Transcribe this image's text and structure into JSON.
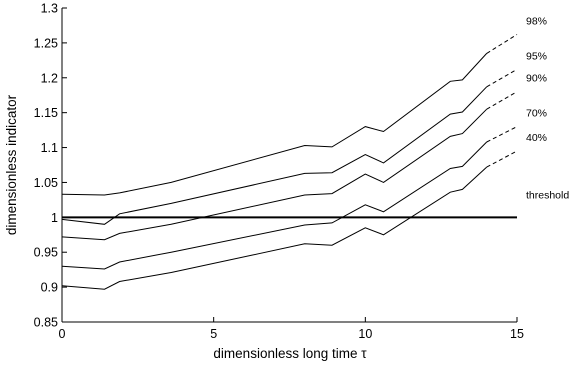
{
  "chart_data": {
    "type": "line",
    "xlabel": "dimensionless long time τ",
    "ylabel": "dimensionless indicator",
    "xlim": [
      0,
      15
    ],
    "ylim": [
      0.85,
      1.3
    ],
    "xticks": [
      0,
      5,
      10,
      15
    ],
    "yticks": [
      0.85,
      0.9,
      0.95,
      1,
      1.05,
      1.1,
      1.15,
      1.2,
      1.25,
      1.3
    ],
    "xtick_labels": [
      "0",
      "5",
      "10",
      "15"
    ],
    "ytick_labels": [
      "0.85",
      "0.9",
      "0.95",
      "1",
      "1.05",
      "1.1",
      "1.15",
      "1.2",
      "1.25",
      "1.3"
    ],
    "grid": false,
    "line_color": "#000000",
    "series": [
      {
        "name": "98%",
        "x": [
          0,
          1.4,
          1.9,
          3.6,
          8.0,
          8.9,
          10.0,
          10.6,
          12.8,
          13.2,
          14.0
        ],
        "y": [
          1.033,
          1.032,
          1.035,
          1.05,
          1.103,
          1.101,
          1.13,
          1.123,
          1.195,
          1.197,
          1.235
        ],
        "extension": {
          "x": [
            14.0,
            15.0
          ],
          "y": [
            1.235,
            1.262
          ]
        }
      },
      {
        "name": "95%",
        "x": [
          0,
          1.4,
          1.9,
          3.6,
          8.0,
          8.9,
          10.0,
          10.6,
          12.8,
          13.2,
          14.0
        ],
        "y": [
          0.997,
          0.99,
          1.005,
          1.02,
          1.063,
          1.064,
          1.09,
          1.078,
          1.148,
          1.151,
          1.187
        ],
        "extension": {
          "x": [
            14.0,
            15.0
          ],
          "y": [
            1.187,
            1.212
          ]
        }
      },
      {
        "name": "90%",
        "x": [
          0,
          1.4,
          1.9,
          3.6,
          8.0,
          8.9,
          10.0,
          10.6,
          12.8,
          13.2,
          14.0
        ],
        "y": [
          0.972,
          0.968,
          0.977,
          0.99,
          1.032,
          1.034,
          1.062,
          1.05,
          1.116,
          1.12,
          1.155
        ],
        "extension": {
          "x": [
            14.0,
            15.0
          ],
          "y": [
            1.155,
            1.18
          ]
        }
      },
      {
        "name": "70%",
        "x": [
          0,
          1.4,
          1.9,
          3.6,
          8.0,
          8.9,
          10.0,
          10.6,
          12.8,
          13.2,
          14.0
        ],
        "y": [
          0.93,
          0.926,
          0.936,
          0.95,
          0.989,
          0.992,
          1.018,
          1.008,
          1.07,
          1.073,
          1.108
        ],
        "extension": {
          "x": [
            14.0,
            15.0
          ],
          "y": [
            1.108,
            1.13
          ]
        }
      },
      {
        "name": "40%",
        "x": [
          0,
          1.4,
          1.9,
          3.6,
          8.0,
          8.9,
          10.0,
          10.6,
          12.8,
          13.2,
          14.0
        ],
        "y": [
          0.902,
          0.897,
          0.908,
          0.921,
          0.962,
          0.96,
          0.985,
          0.975,
          1.036,
          1.04,
          1.072
        ],
        "extension": {
          "x": [
            14.0,
            15.0
          ],
          "y": [
            1.072,
            1.095
          ]
        }
      }
    ],
    "threshold": {
      "name": "threshold",
      "y": 1.0
    }
  }
}
